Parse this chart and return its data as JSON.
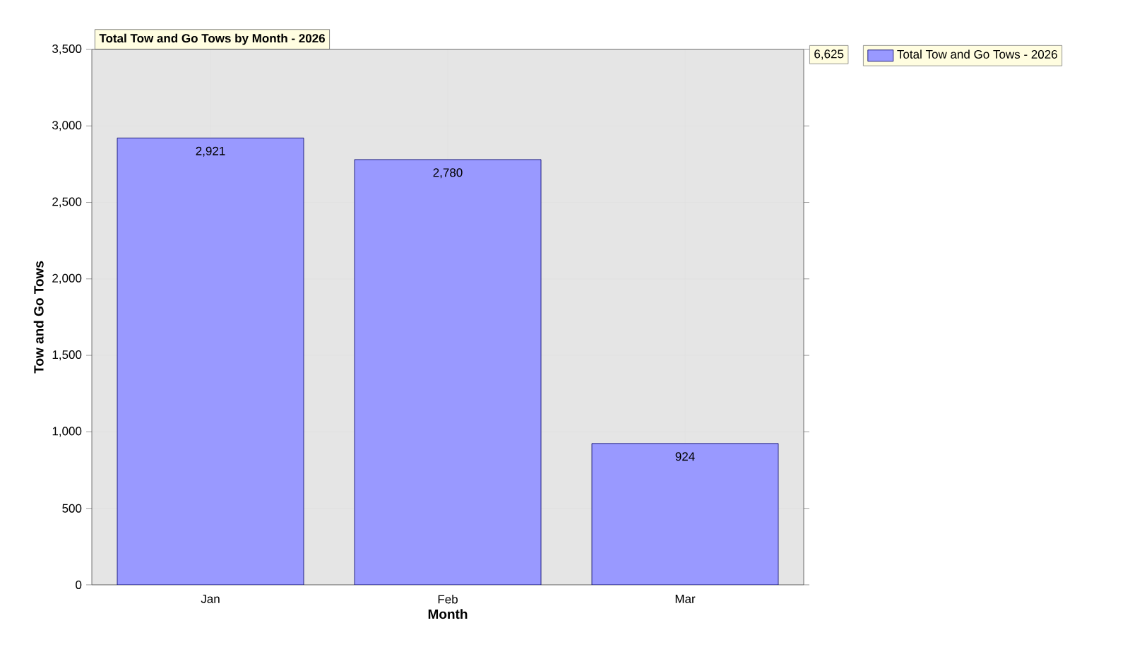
{
  "chart_data": {
    "type": "bar",
    "title": "Total Tow and Go Tows by Month - 2026",
    "xlabel": "Month",
    "ylabel": "Tow and Go Tows",
    "categories": [
      "Jan",
      "Feb",
      "Mar"
    ],
    "series": [
      {
        "name": "Total Tow and Go Tows - 2026",
        "color": "#9999ff",
        "values": [
          2921,
          2780,
          924
        ],
        "value_labels": [
          "2,921",
          "2,780",
          "924"
        ]
      }
    ],
    "ylim": [
      0,
      3500
    ],
    "yticks": [
      0,
      500,
      {
        "value": 1000,
        "label": "1,000"
      },
      {
        "value": 1500,
        "label": "1,500"
      },
      {
        "value": 2000,
        "label": "2,000"
      },
      {
        "value": 2500,
        "label": "2,500"
      },
      {
        "value": 3000,
        "label": "3,000"
      },
      {
        "value": 3500,
        "label": "3,500"
      }
    ],
    "annotations": [
      "6,625"
    ],
    "grid": true,
    "legend": "top right"
  }
}
